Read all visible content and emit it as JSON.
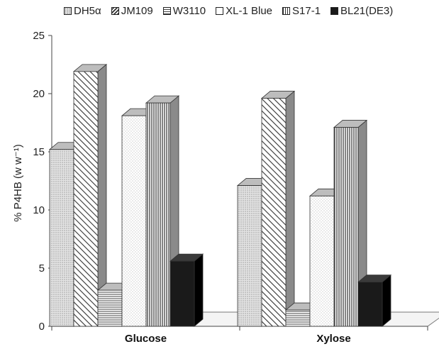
{
  "chart_data": {
    "type": "bar",
    "title": "",
    "xlabel": "",
    "ylabel": "% P4HB (w w⁻¹)",
    "ylim": [
      0,
      25
    ],
    "yticks": [
      0,
      5,
      10,
      15,
      20,
      25
    ],
    "categories": [
      "Glucose",
      "Xylose"
    ],
    "series": [
      {
        "name": "DH5α",
        "values": [
          15.2,
          12.1
        ],
        "pattern": "dots",
        "color": "#dcdcdc"
      },
      {
        "name": "JM109",
        "values": [
          21.9,
          19.6
        ],
        "pattern": "diagonal",
        "color": "#ffffff"
      },
      {
        "name": "W3110",
        "values": [
          3.1,
          1.4
        ],
        "pattern": "horizontal",
        "color": "#ffffff"
      },
      {
        "name": "XL-1 Blue",
        "values": [
          18.1,
          11.2
        ],
        "pattern": "light-dots",
        "color": "#ffffff"
      },
      {
        "name": "S17-1",
        "values": [
          19.2,
          17.1
        ],
        "pattern": "vertical",
        "color": "#ffffff"
      },
      {
        "name": "BL21(DE3)",
        "values": [
          5.6,
          3.8
        ],
        "pattern": "solid",
        "color": "#1a1a1a"
      }
    ],
    "legend_position": "top",
    "grid": false,
    "style": "3d-bar"
  }
}
